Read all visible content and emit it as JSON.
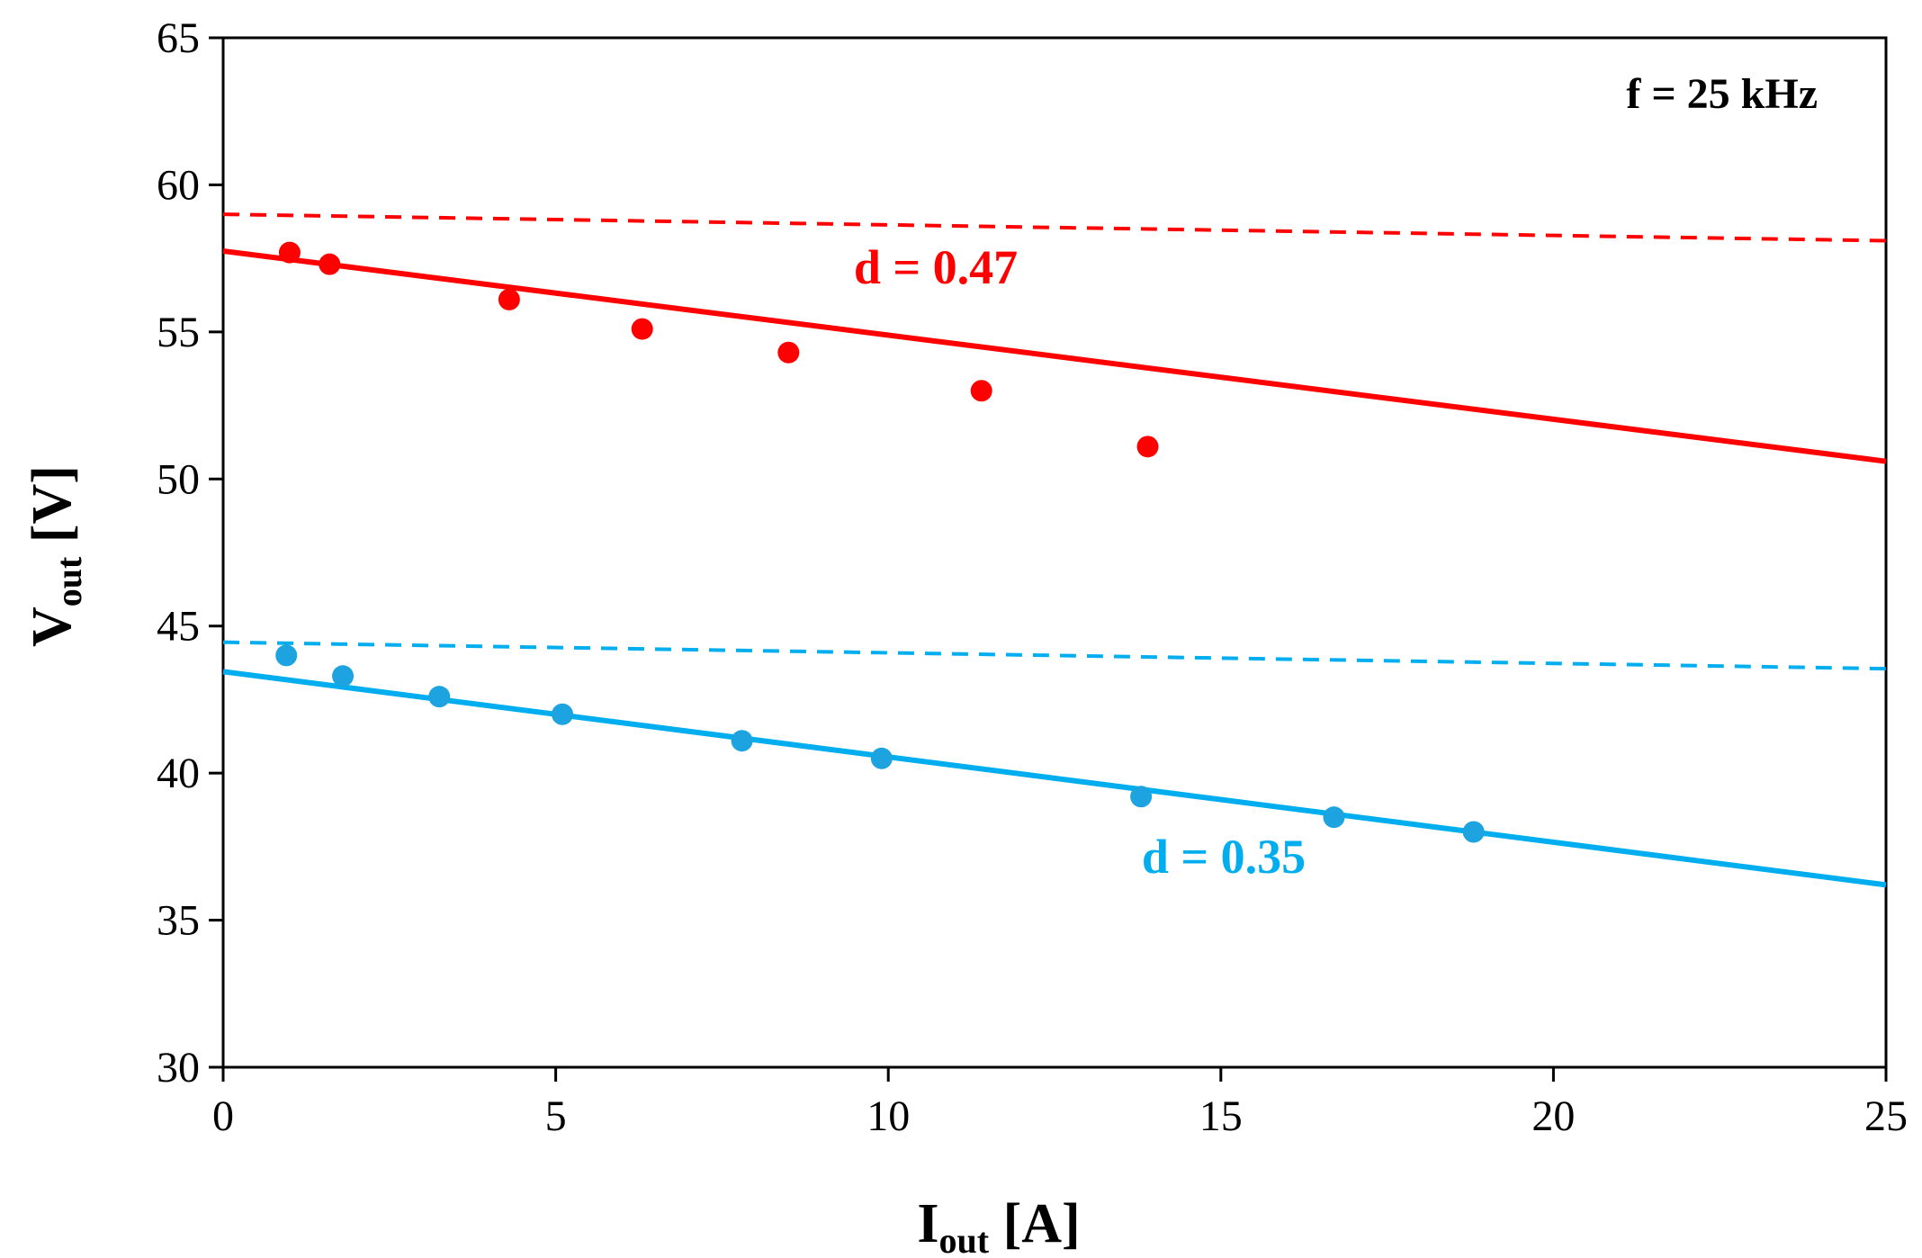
{
  "chart_data": {
    "type": "scatter",
    "xlabel": {
      "main": "I",
      "sub": "out",
      "unit": " [A]"
    },
    "ylabel": {
      "main": "V",
      "sub": "out",
      "unit": " [V]"
    },
    "xlim": [
      0,
      25
    ],
    "ylim": [
      30,
      65
    ],
    "x_ticks": [
      0,
      5,
      10,
      15,
      20,
      25
    ],
    "y_ticks": [
      30,
      35,
      40,
      45,
      50,
      55,
      60,
      65
    ],
    "grid": false,
    "annotation": "f = 25 kHz",
    "series": [
      {
        "name": "d = 0.47",
        "color": "#ff0000",
        "points": [
          [
            1.0,
            57.7
          ],
          [
            1.6,
            57.3
          ],
          [
            4.3,
            56.1
          ],
          [
            6.3,
            55.1
          ],
          [
            8.5,
            54.3
          ],
          [
            11.4,
            53.0
          ],
          [
            13.9,
            51.1
          ]
        ],
        "fit_line": {
          "x": [
            0,
            25
          ],
          "y": [
            57.75,
            50.6
          ]
        },
        "ideal_line": {
          "x": [
            0,
            25
          ],
          "y": [
            59.0,
            58.1
          ]
        }
      },
      {
        "name": "d = 0.35",
        "color": "#00aeef",
        "marker_color": "#1ca3e0",
        "points": [
          [
            0.95,
            44.0
          ],
          [
            1.8,
            43.3
          ],
          [
            3.25,
            42.6
          ],
          [
            5.1,
            42.0
          ],
          [
            7.8,
            41.1
          ],
          [
            9.9,
            40.5
          ],
          [
            13.8,
            39.2
          ],
          [
            16.7,
            38.5
          ],
          [
            18.8,
            38.0
          ]
        ],
        "fit_line": {
          "x": [
            0,
            25
          ],
          "y": [
            43.45,
            36.2
          ]
        },
        "ideal_line": {
          "x": [
            0,
            25
          ],
          "y": [
            44.45,
            43.55
          ]
        }
      }
    ]
  }
}
